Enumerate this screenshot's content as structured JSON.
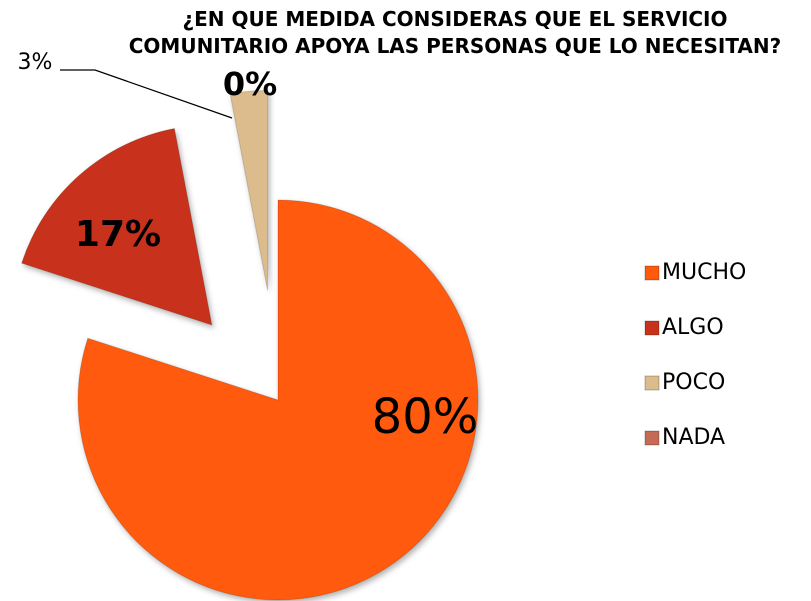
{
  "chart_data": {
    "type": "pie",
    "title": "¿EN QUE MEDIDA CONSIDERAS QUE EL SERVICIO COMUNITARIO APOYA LAS PERSONAS QUE LO NECESITAN?",
    "categories": [
      "MUCHO",
      "ALGO",
      "POCO",
      "NADA"
    ],
    "values": [
      80,
      17,
      3,
      0
    ],
    "value_labels": [
      "80%",
      "17%",
      "3%",
      "0%"
    ],
    "colors": [
      "#ff5a0a",
      "#c8321a",
      "#dcbc8c",
      "#c66a55"
    ],
    "legend": "right"
  }
}
